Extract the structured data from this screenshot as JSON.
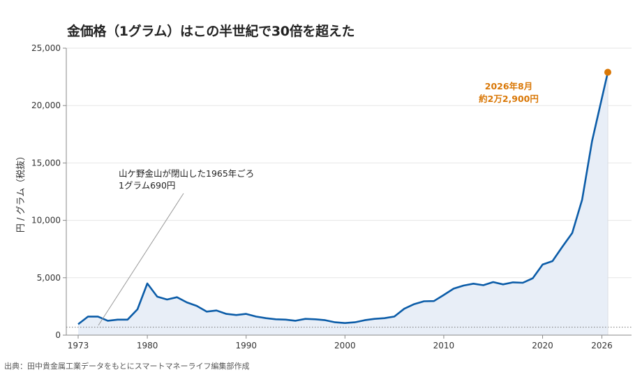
{
  "title": "金価格（1グラム）はこの半世紀で30倍を超えた",
  "source": "出典：田中貴金属工業データをもとにスマートマネーライフ編集部作成",
  "colors": {
    "line": "#0b5ca8",
    "area": "#e8eef7",
    "marker": "#d97706",
    "grid": "#e6e6e6"
  },
  "chart_data": {
    "type": "area",
    "title": "金価格（1グラム）はこの半世紀で30倍を超えた",
    "ylabel": "円 / グラム（税抜）",
    "xlabel": "",
    "xlim": [
      1971.8,
      2029
    ],
    "ylim": [
      0,
      25000
    ],
    "x_ticks": [
      1973,
      1980,
      1990,
      2000,
      2010,
      2020,
      2026
    ],
    "x_tick_labels": [
      "1973",
      "1980",
      "1990",
      "2000",
      "2010",
      "2020",
      "2026"
    ],
    "y_ticks": [
      0,
      5000,
      10000,
      15000,
      20000,
      25000
    ],
    "y_tick_labels": [
      "0",
      "5,000",
      "10,000",
      "15,000",
      "20,000",
      "25,000"
    ],
    "grid": true,
    "reference_line": {
      "y": 690,
      "style": "dotted"
    },
    "series": [
      {
        "x": [
          1973,
          1974,
          1975,
          1976,
          1977,
          1978,
          1979,
          1980,
          1981,
          1982,
          1983,
          1984,
          1985,
          1986,
          1987,
          1988,
          1989,
          1990,
          1991,
          1992,
          1993,
          1994,
          1995,
          1996,
          1997,
          1998,
          1999,
          2000,
          2001,
          2002,
          2003,
          2004,
          2005,
          2006,
          2007,
          2008,
          2009,
          2010,
          2011,
          2012,
          2013,
          2014,
          2015,
          2016,
          2017,
          2018,
          2019,
          2020,
          2021,
          2022,
          2023,
          2024,
          2025,
          2026.6
        ],
        "y": [
          950,
          1620,
          1620,
          1250,
          1350,
          1350,
          2250,
          4500,
          3350,
          3100,
          3300,
          2850,
          2550,
          2050,
          2150,
          1850,
          1750,
          1850,
          1620,
          1480,
          1380,
          1350,
          1250,
          1420,
          1380,
          1300,
          1120,
          1050,
          1120,
          1300,
          1420,
          1480,
          1620,
          2300,
          2700,
          2950,
          2970,
          3500,
          4050,
          4320,
          4480,
          4350,
          4620,
          4420,
          4600,
          4560,
          4950,
          6150,
          6450,
          7700,
          8900,
          11800,
          16900,
          22900
        ]
      }
    ],
    "annotations": [
      {
        "text": "山ケ野金山が閉山した1965年ごろ",
        "text2": "1グラム690円"
      },
      {
        "text": "2026年8月",
        "text2": "約2万2,900円"
      }
    ]
  }
}
